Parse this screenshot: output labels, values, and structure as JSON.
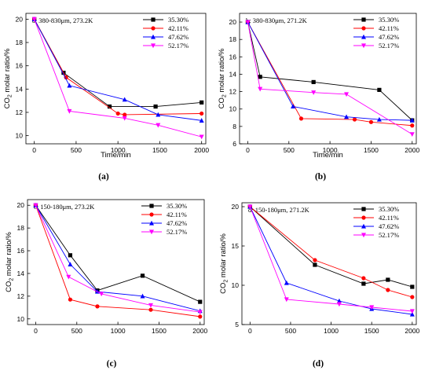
{
  "chart_data": [
    {
      "type": "line",
      "panel": "a",
      "letter": "(a)",
      "title": "a: 380-830μm, 273.2K",
      "xlabel": "Time/min",
      "ylabel_html": "CO₂ molar ratio/%",
      "xlim": [
        -100,
        2050
      ],
      "ylim": [
        9.3,
        20.5
      ],
      "xticks": [
        0,
        500,
        1000,
        1500,
        2000
      ],
      "yticks": [
        10,
        12,
        14,
        16,
        18,
        20
      ],
      "legend_position": "top-right",
      "series": [
        {
          "name": "35.30%",
          "color": "#000000",
          "marker": "square",
          "x": [
            0,
            350,
            900,
            1450,
            2000
          ],
          "y": [
            20,
            15.4,
            12.5,
            12.5,
            12.85
          ]
        },
        {
          "name": "42.11%",
          "color": "#ff0000",
          "marker": "circle",
          "x": [
            0,
            380,
            1000,
            1080,
            2000
          ],
          "y": [
            20,
            15.0,
            11.9,
            11.8,
            11.9
          ]
        },
        {
          "name": "47.62%",
          "color": "#0000ff",
          "marker": "triangle-up",
          "x": [
            0,
            420,
            1080,
            1480,
            2000
          ],
          "y": [
            20,
            14.3,
            13.1,
            11.8,
            11.3
          ]
        },
        {
          "name": "52.17%",
          "color": "#ff00ff",
          "marker": "triangle-down",
          "x": [
            0,
            420,
            1080,
            1480,
            2000
          ],
          "y": [
            20,
            12.1,
            11.5,
            10.9,
            9.9
          ]
        }
      ]
    },
    {
      "type": "line",
      "panel": "b",
      "letter": "(b)",
      "title": "b: 380-830μm, 271.2K",
      "xlabel": "Time/min",
      "ylabel_html": "CO₂ molar ratio/%",
      "xlim": [
        -100,
        2050
      ],
      "ylim": [
        6,
        21
      ],
      "xticks": [
        0,
        500,
        1000,
        1500,
        2000
      ],
      "yticks": [
        6,
        8,
        10,
        12,
        14,
        16,
        18,
        20
      ],
      "legend_position": "top-right",
      "series": [
        {
          "name": "35.30%",
          "color": "#000000",
          "marker": "square",
          "x": [
            0,
            150,
            800,
            1600,
            2000
          ],
          "y": [
            20,
            13.7,
            13.1,
            12.2,
            8.7
          ]
        },
        {
          "name": "42.11%",
          "color": "#ff0000",
          "marker": "circle",
          "x": [
            0,
            650,
            1300,
            1500,
            2000
          ],
          "y": [
            20,
            8.9,
            8.8,
            8.5,
            8.1
          ]
        },
        {
          "name": "47.62%",
          "color": "#0000ff",
          "marker": "triangle-up",
          "x": [
            0,
            550,
            1200,
            1600,
            2000
          ],
          "y": [
            20,
            10.3,
            9.1,
            8.8,
            8.7
          ]
        },
        {
          "name": "52.17%",
          "color": "#ff00ff",
          "marker": "triangle-down",
          "x": [
            0,
            150,
            800,
            1200,
            2000
          ],
          "y": [
            20,
            12.3,
            11.9,
            11.7,
            7.1
          ]
        }
      ]
    },
    {
      "type": "line",
      "panel": "c",
      "letter": "(c)",
      "title": "c: 150-180μm, 273.2K",
      "xlabel": "",
      "ylabel_html": "CO₂ molar ratio/%",
      "xlim": [
        -100,
        2050
      ],
      "ylim": [
        9.5,
        20.5
      ],
      "xticks": [
        0,
        500,
        1000,
        1500,
        2000
      ],
      "yticks": [
        10,
        12,
        14,
        16,
        18,
        20
      ],
      "legend_position": "top-right",
      "series": [
        {
          "name": "35.30%",
          "color": "#000000",
          "marker": "square",
          "x": [
            0,
            420,
            750,
            1300,
            2000
          ],
          "y": [
            20,
            15.6,
            12.5,
            13.8,
            11.5
          ]
        },
        {
          "name": "42.11%",
          "color": "#ff0000",
          "marker": "circle",
          "x": [
            0,
            420,
            750,
            1400,
            2000
          ],
          "y": [
            20,
            11.7,
            11.1,
            10.8,
            10.2
          ]
        },
        {
          "name": "47.62%",
          "color": "#0000ff",
          "marker": "triangle-up",
          "x": [
            0,
            420,
            750,
            1300,
            2000
          ],
          "y": [
            20,
            14.8,
            12.4,
            12.0,
            10.7
          ]
        },
        {
          "name": "52.17%",
          "color": "#ff00ff",
          "marker": "triangle-down",
          "x": [
            0,
            400,
            800,
            1400,
            2000
          ],
          "y": [
            20,
            13.7,
            12.2,
            11.2,
            10.6
          ]
        }
      ]
    },
    {
      "type": "line",
      "panel": "d",
      "letter": "(d)",
      "title": "d: 150-180μm, 271.2K",
      "xlabel": "",
      "ylabel_html": "CO₂ molar ratio/%",
      "xlim": [
        -100,
        2050
      ],
      "ylim": [
        5,
        20.5
      ],
      "xticks": [
        0,
        500,
        1000,
        1500,
        2000
      ],
      "yticks": [
        5,
        10,
        15,
        20
      ],
      "legend_position": "top-right",
      "series": [
        {
          "name": "35.30%",
          "color": "#000000",
          "marker": "square",
          "x": [
            0,
            800,
            1400,
            1700,
            2000
          ],
          "y": [
            20,
            12.6,
            10.2,
            10.7,
            9.8
          ]
        },
        {
          "name": "42.11%",
          "color": "#ff0000",
          "marker": "circle",
          "x": [
            0,
            800,
            1400,
            1700,
            2000
          ],
          "y": [
            20,
            13.2,
            10.9,
            9.4,
            8.5
          ]
        },
        {
          "name": "47.62%",
          "color": "#0000ff",
          "marker": "triangle-up",
          "x": [
            0,
            450,
            1100,
            1500,
            2000
          ],
          "y": [
            20,
            10.3,
            8.0,
            7.0,
            6.3
          ]
        },
        {
          "name": "52.17%",
          "color": "#ff00ff",
          "marker": "triangle-down",
          "x": [
            0,
            450,
            1100,
            1500,
            2000
          ],
          "y": [
            20,
            8.2,
            7.6,
            7.2,
            6.7
          ]
        }
      ]
    }
  ]
}
